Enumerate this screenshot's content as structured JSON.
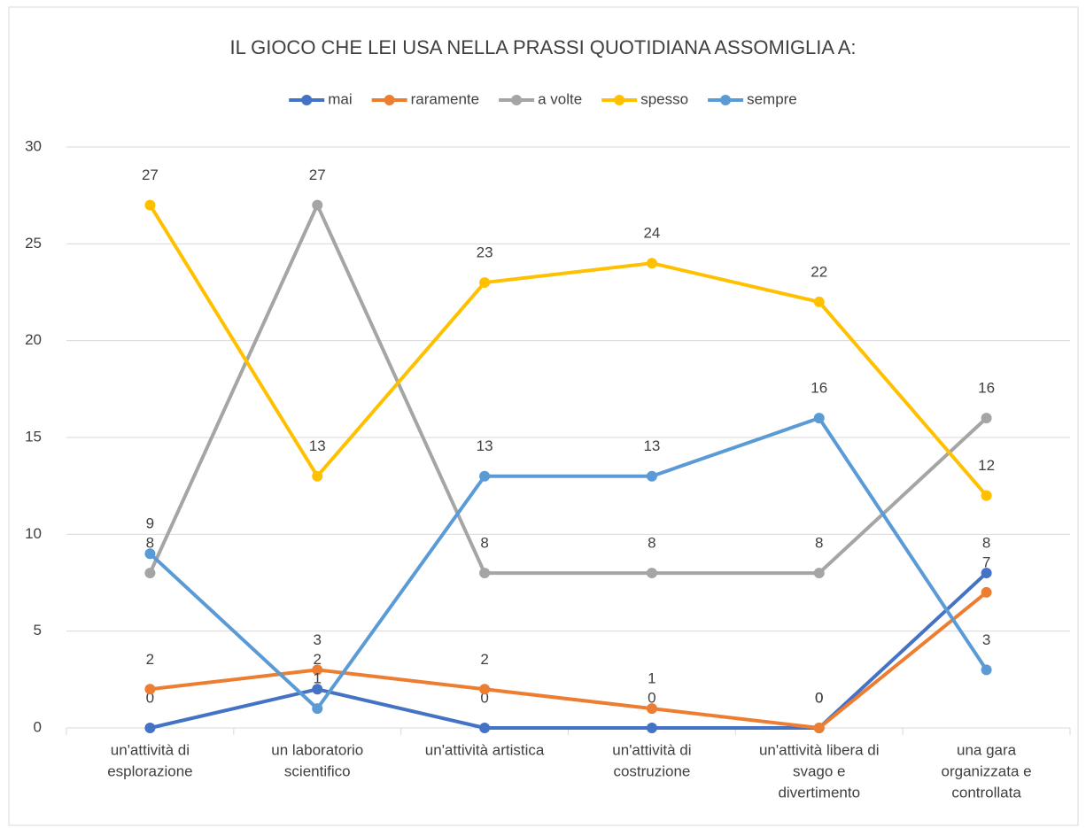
{
  "chart_data": {
    "type": "line",
    "title": "IL GIOCO CHE LEI USA NELLA PRASSI QUOTIDIANA ASSOMIGLIA A:",
    "categories": [
      [
        "un'attività di",
        "esplorazione"
      ],
      [
        "un laboratorio",
        "scientifico"
      ],
      [
        "un'attività artistica"
      ],
      [
        "un'attività di",
        "costruzione"
      ],
      [
        "un'attività libera di",
        "svago e",
        "divertimento"
      ],
      [
        "una gara",
        "organizzata e",
        "controllata"
      ]
    ],
    "series": [
      {
        "name": "mai",
        "color": "#4472c4",
        "values": [
          0,
          2,
          0,
          0,
          0,
          8
        ]
      },
      {
        "name": "raramente",
        "color": "#ed7d31",
        "values": [
          2,
          3,
          2,
          1,
          0,
          7
        ]
      },
      {
        "name": "a volte",
        "color": "#a5a5a5",
        "values": [
          8,
          27,
          8,
          8,
          8,
          16
        ]
      },
      {
        "name": "spesso",
        "color": "#ffc000",
        "values": [
          27,
          13,
          23,
          24,
          22,
          12
        ]
      },
      {
        "name": "sempre",
        "color": "#5b9bd5",
        "values": [
          9,
          1,
          13,
          13,
          16,
          3
        ]
      }
    ],
    "ylim": [
      0,
      30
    ],
    "yticks": [
      0,
      5,
      10,
      15,
      20,
      25,
      30
    ],
    "grid": true,
    "legend": "top"
  }
}
